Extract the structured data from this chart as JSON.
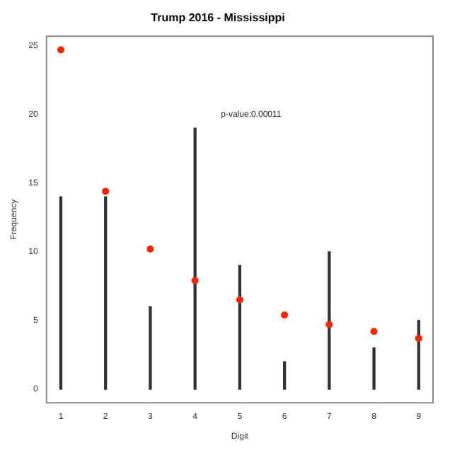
{
  "chart_data": {
    "type": "bar",
    "title": "Trump 2016 - Mississippi",
    "xlabel": "Digit",
    "ylabel": "Frequency",
    "x": [
      1,
      2,
      3,
      4,
      5,
      6,
      7,
      8,
      9
    ],
    "series": [
      {
        "color": "#333333",
        "values": [
          14,
          14,
          6,
          19,
          9,
          2,
          10,
          3,
          5
        ]
      },
      {
        "type": "scatter",
        "color": "#ff2200",
        "marker": "circle",
        "values": [
          24.7,
          14.4,
          10.2,
          7.9,
          6.5,
          5.4,
          4.7,
          4.2,
          3.7
        ]
      }
    ],
    "xlim": [
      0.68,
      9.32
    ],
    "xticks": [
      1,
      2,
      3,
      4,
      5,
      6,
      7,
      8,
      9
    ],
    "ylim": [
      -0.99,
      25.69
    ],
    "yticks": [
      0,
      5,
      10,
      15,
      20,
      25
    ],
    "annotations": [
      "p-value:0.00011"
    ],
    "grid": false,
    "legend": false
  }
}
